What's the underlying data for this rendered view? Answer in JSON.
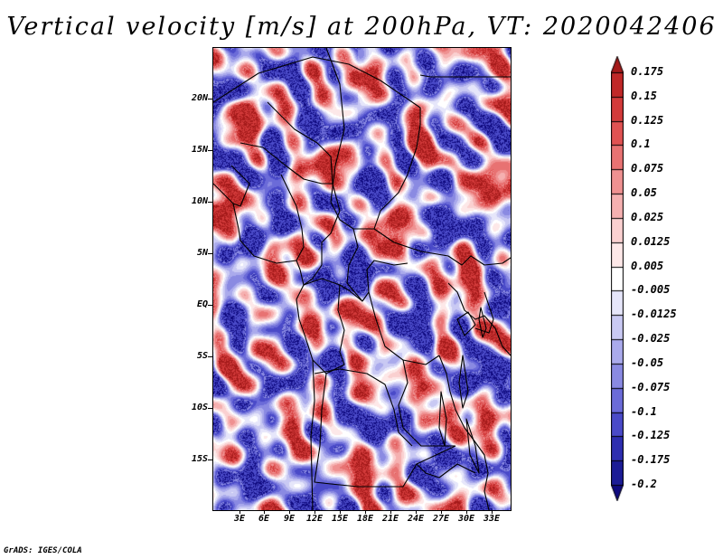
{
  "title": "Vertical velocity [m/s] at 200hPa, VT: 2020042406",
  "footer": "GrADS: IGES/COLA",
  "map": {
    "lat_labels": [
      "20N",
      "15N",
      "10N",
      "5N",
      "EQ",
      "5S",
      "10S",
      "15S"
    ],
    "lon_labels": [
      "3E",
      "6E",
      "9E",
      "12E",
      "15E",
      "18E",
      "21E",
      "24E",
      "27E",
      "30E",
      "33E"
    ]
  },
  "colorbar": {
    "labels": [
      "0.175",
      "0.15",
      "0.125",
      "0.1",
      "0.075",
      "0.05",
      "0.025",
      "0.0125",
      "0.005",
      "-0.005",
      "-0.0125",
      "-0.025",
      "-0.05",
      "-0.075",
      "-0.1",
      "-0.125",
      "-0.175",
      "-0.2"
    ],
    "colors": [
      "#a51a1a",
      "#c02828",
      "#d33a3a",
      "#e05252",
      "#e87272",
      "#ef9191",
      "#f5b0b0",
      "#fad0d0",
      "#fde8e8",
      "#ffffff",
      "#e6e6fa",
      "#c9c9f3",
      "#aaaaec",
      "#8a8ae2",
      "#6b6bd8",
      "#4a4ac8",
      "#2e2eb0",
      "#1c1c96",
      "#100a80"
    ]
  }
}
